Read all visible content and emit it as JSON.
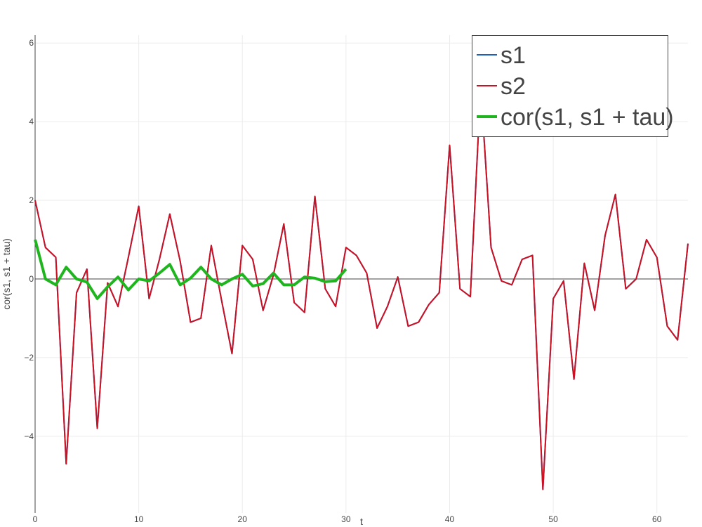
{
  "chart_data": {
    "type": "line",
    "title": "",
    "xlabel": "t",
    "ylabel": "cor(s1, s1 + tau)",
    "xlim": [
      0,
      63
    ],
    "ylim": [
      -5.95,
      6.2
    ],
    "x_ticks": [
      0,
      10,
      20,
      30,
      40,
      50,
      60
    ],
    "y_ticks": [
      -4,
      -2,
      0,
      2,
      4,
      6
    ],
    "grid": true,
    "zero_line": true,
    "legend_position": "top-right",
    "series": [
      {
        "name": "s1",
        "color": "#1f5fc4",
        "line_width": 2,
        "x": [
          0,
          1,
          2,
          3,
          4,
          5,
          6,
          7,
          8,
          9,
          10,
          11,
          12,
          13,
          14,
          15,
          16,
          17,
          18,
          19,
          20,
          21,
          22,
          23,
          24,
          25,
          26,
          27,
          28,
          29,
          30,
          31,
          32,
          33,
          34,
          35,
          36,
          37,
          38,
          39,
          40,
          41,
          42,
          43,
          44,
          45,
          46,
          47,
          48,
          49,
          50,
          51,
          52,
          53,
          54,
          55,
          56,
          57,
          58,
          59,
          60,
          61,
          62,
          63
        ],
        "y": [
          2.0,
          0.8,
          0.55,
          -4.7,
          -0.35,
          0.25,
          -3.8,
          -0.1,
          -0.7,
          0.55,
          1.85,
          -0.5,
          0.5,
          1.65,
          0.45,
          -1.1,
          -1.0,
          0.85,
          -0.55,
          -1.9,
          0.85,
          0.5,
          -0.8,
          0.1,
          1.4,
          -0.6,
          -0.85,
          2.1,
          -0.25,
          -0.7,
          0.8,
          0.6,
          0.15,
          -1.25,
          -0.7,
          0.05,
          -1.2,
          -1.1,
          -0.65,
          -0.35,
          3.4,
          -0.25,
          -0.45,
          4.9,
          0.8,
          -0.05,
          -0.15,
          0.5,
          0.6,
          -5.35,
          -0.5,
          -0.05,
          -2.55,
          0.4,
          -0.8,
          1.1,
          2.15,
          -0.25,
          0.0,
          1.0,
          0.55,
          -1.2,
          -1.55,
          0.9
        ]
      },
      {
        "name": "s2",
        "color": "#cc1122",
        "line_width": 2,
        "x": [
          0,
          1,
          2,
          3,
          4,
          5,
          6,
          7,
          8,
          9,
          10,
          11,
          12,
          13,
          14,
          15,
          16,
          17,
          18,
          19,
          20,
          21,
          22,
          23,
          24,
          25,
          26,
          27,
          28,
          29,
          30,
          31,
          32,
          33,
          34,
          35,
          36,
          37,
          38,
          39,
          40,
          41,
          42,
          43,
          44,
          45,
          46,
          47,
          48,
          49,
          50,
          51,
          52,
          53,
          54,
          55,
          56,
          57,
          58,
          59,
          60,
          61,
          62,
          63
        ],
        "y": [
          2.0,
          0.8,
          0.55,
          -4.7,
          -0.35,
          0.25,
          -3.8,
          -0.1,
          -0.7,
          0.55,
          1.85,
          -0.5,
          0.5,
          1.65,
          0.45,
          -1.1,
          -1.0,
          0.85,
          -0.55,
          -1.9,
          0.85,
          0.5,
          -0.8,
          0.1,
          1.4,
          -0.6,
          -0.85,
          2.1,
          -0.25,
          -0.7,
          0.8,
          0.6,
          0.15,
          -1.25,
          -0.7,
          0.05,
          -1.2,
          -1.1,
          -0.65,
          -0.35,
          3.4,
          -0.25,
          -0.45,
          4.9,
          0.8,
          -0.05,
          -0.15,
          0.5,
          0.6,
          -5.35,
          -0.5,
          -0.05,
          -2.55,
          0.4,
          -0.8,
          1.1,
          2.15,
          -0.25,
          0.0,
          1.0,
          0.55,
          -1.2,
          -1.55,
          0.9
        ]
      },
      {
        "name": "cor(s1, s1 + tau)",
        "color": "#1fb51f",
        "line_width": 4,
        "x": [
          0,
          1,
          2,
          3,
          4,
          5,
          6,
          7,
          8,
          9,
          10,
          11,
          12,
          13,
          14,
          15,
          16,
          17,
          18,
          19,
          20,
          21,
          22,
          23,
          24,
          25,
          26,
          27,
          28,
          29,
          30
        ],
        "y": [
          1.0,
          0.0,
          -0.15,
          0.3,
          0.0,
          -0.08,
          -0.5,
          -0.2,
          0.05,
          -0.28,
          0.0,
          -0.05,
          0.15,
          0.37,
          -0.15,
          0.02,
          0.3,
          0.0,
          -0.15,
          0.0,
          0.12,
          -0.18,
          -0.12,
          0.15,
          -0.15,
          -0.15,
          0.05,
          0.02,
          -0.07,
          -0.05,
          0.25
        ]
      }
    ]
  }
}
